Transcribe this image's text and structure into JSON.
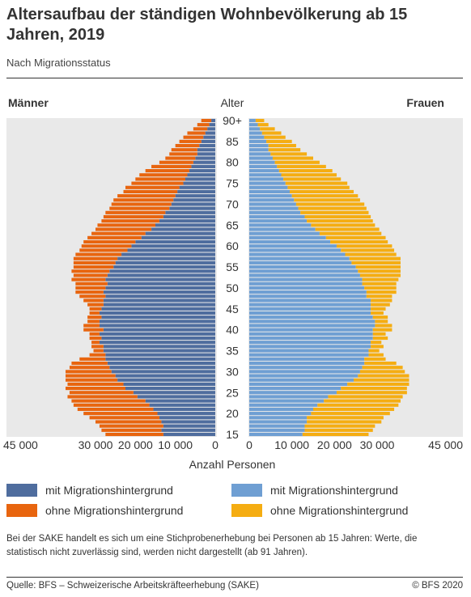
{
  "title": "Altersaufbau der ständigen Wohnbevölkerung ab 15 Jahren, 2019",
  "subtitle": "Nach Migrationsstatus",
  "note": "Bei der SAKE handelt es sich um eine Stichprobenerhebung bei Personen ab 15 Jahren: Werte, die statistisch nicht zuverlässig sind, werden nicht dargestellt (ab 91 Jahren).",
  "source": "Quelle: BFS – Schweizerische Arbeitskräfteerhebung (SAKE)",
  "copyright": "© BFS 2020",
  "colors": {
    "men_mig": "#4f6d9e",
    "men_nomig": "#e8650f",
    "women_mig": "#6f9fd3",
    "women_nomig": "#f5ad12",
    "panel_bg": "#e9e9e9"
  },
  "legend": {
    "men_mig": "mit Migrationshintergrund",
    "men_nomig": "ohne Migrationshintergrund",
    "women_mig": "mit Migrationshintergrund",
    "women_nomig": "ohne Migrationshintergrund"
  },
  "chart_data": {
    "type": "bar",
    "orientation": "horizontal-population-pyramid",
    "stacked": true,
    "left_label": "Männer",
    "right_label": "Frauen",
    "center_label": "Alter",
    "xlabel": "Anzahl Personen",
    "xlim": [
      0,
      45000
    ],
    "x_ticks": [
      "45 000",
      "30 000",
      "20 000",
      "10 000",
      "0",
      "0",
      "10 000",
      "20 000",
      "30 000",
      "45 000"
    ],
    "x_tick_values_left": [
      45000,
      30000,
      20000,
      10000,
      0
    ],
    "x_tick_values_right": [
      0,
      10000,
      20000,
      30000,
      45000
    ],
    "age_labels": [
      "15",
      "20",
      "25",
      "30",
      "35",
      "40",
      "45",
      "50",
      "55",
      "60",
      "65",
      "70",
      "75",
      "80",
      "85",
      "90+"
    ],
    "ages": [
      15,
      16,
      17,
      18,
      19,
      20,
      21,
      22,
      23,
      24,
      25,
      26,
      27,
      28,
      29,
      30,
      31,
      32,
      33,
      34,
      35,
      36,
      37,
      38,
      39,
      40,
      41,
      42,
      43,
      44,
      45,
      46,
      47,
      48,
      49,
      50,
      51,
      52,
      53,
      54,
      55,
      56,
      57,
      58,
      59,
      60,
      61,
      62,
      63,
      64,
      65,
      66,
      67,
      68,
      69,
      70,
      71,
      72,
      73,
      74,
      75,
      76,
      77,
      78,
      79,
      80,
      81,
      82,
      83,
      84,
      85,
      86,
      87,
      88,
      89,
      90
    ],
    "series": [
      {
        "name": "mit Migrationshintergrund",
        "side": "Männer",
        "values": [
          13000,
          13500,
          13000,
          13500,
          14000,
          14500,
          15500,
          16500,
          17500,
          19500,
          20500,
          22500,
          23000,
          24500,
          25000,
          26000,
          26500,
          27000,
          27500,
          27500,
          28000,
          28000,
          29000,
          28500,
          29000,
          28000,
          29000,
          29000,
          28500,
          29000,
          28500,
          28000,
          28000,
          27500,
          28000,
          27500,
          27000,
          27500,
          27000,
          26500,
          25500,
          25000,
          24500,
          23500,
          22000,
          21000,
          20000,
          18500,
          17500,
          16000,
          15000,
          14000,
          13000,
          12500,
          11500,
          11000,
          10500,
          10000,
          9500,
          9000,
          8000,
          7500,
          7000,
          6500,
          6000,
          5500,
          5000,
          4500,
          4500,
          4000,
          3500,
          3000,
          2500,
          2000,
          1500,
          1000
        ]
      },
      {
        "name": "ohne Migrationshintergrund",
        "side": "Männer",
        "values": [
          14500,
          15000,
          16000,
          16500,
          17500,
          18500,
          19000,
          19000,
          18500,
          17500,
          16000,
          15000,
          14000,
          13000,
          12500,
          11500,
          10000,
          9000,
          6500,
          4000,
          2500,
          3000,
          2000,
          3000,
          2500,
          5000,
          4000,
          3000,
          3500,
          2500,
          3000,
          4000,
          5000,
          6500,
          7000,
          7500,
          8000,
          8500,
          8500,
          9500,
          10000,
          10500,
          11000,
          11500,
          12000,
          12500,
          13000,
          13500,
          13500,
          14000,
          14500,
          14500,
          15000,
          15000,
          15000,
          15000,
          15000,
          14500,
          13500,
          13500,
          13000,
          12500,
          12000,
          11000,
          10000,
          8500,
          7500,
          7000,
          6500,
          6000,
          5500,
          5000,
          4500,
          3500,
          3000,
          2500
        ]
      },
      {
        "name": "mit Migrationshintergrund",
        "side": "Frauen",
        "values": [
          12500,
          13000,
          13000,
          13500,
          13500,
          14500,
          15000,
          16000,
          17500,
          18500,
          20500,
          21500,
          23000,
          24500,
          25500,
          26000,
          26500,
          27000,
          27000,
          28000,
          28000,
          28500,
          28500,
          29000,
          29000,
          29000,
          29500,
          29500,
          29000,
          28500,
          28500,
          28500,
          28500,
          27500,
          27500,
          27000,
          26500,
          26500,
          26000,
          25500,
          25000,
          24000,
          23500,
          22500,
          21500,
          20500,
          19000,
          18000,
          16500,
          15500,
          14500,
          13500,
          13000,
          12000,
          11500,
          11000,
          10500,
          10000,
          9500,
          9000,
          8500,
          8000,
          7500,
          7000,
          6500,
          6000,
          5500,
          5000,
          4500,
          4500,
          4000,
          3500,
          3000,
          2500,
          2000,
          1500
        ]
      },
      {
        "name": "ohne Migrationshintergrund",
        "side": "Frauen",
        "values": [
          15500,
          16000,
          16500,
          17500,
          18000,
          18500,
          19000,
          19000,
          18000,
          17500,
          16500,
          15500,
          14500,
          13000,
          12000,
          10500,
          9500,
          7500,
          5000,
          3500,
          2500,
          3000,
          2500,
          3500,
          3000,
          4500,
          4000,
          3000,
          3500,
          3000,
          3500,
          4500,
          5000,
          6000,
          7000,
          7500,
          8000,
          8500,
          9500,
          10000,
          10500,
          11500,
          12000,
          12000,
          12500,
          13000,
          13500,
          14000,
          14500,
          15000,
          15000,
          15500,
          15500,
          16000,
          16000,
          16000,
          15500,
          15500,
          15000,
          14500,
          14500,
          13500,
          13000,
          12500,
          11500,
          10500,
          9500,
          8500,
          7500,
          6500,
          6000,
          5000,
          4500,
          3500,
          2500,
          2000
        ]
      }
    ]
  }
}
